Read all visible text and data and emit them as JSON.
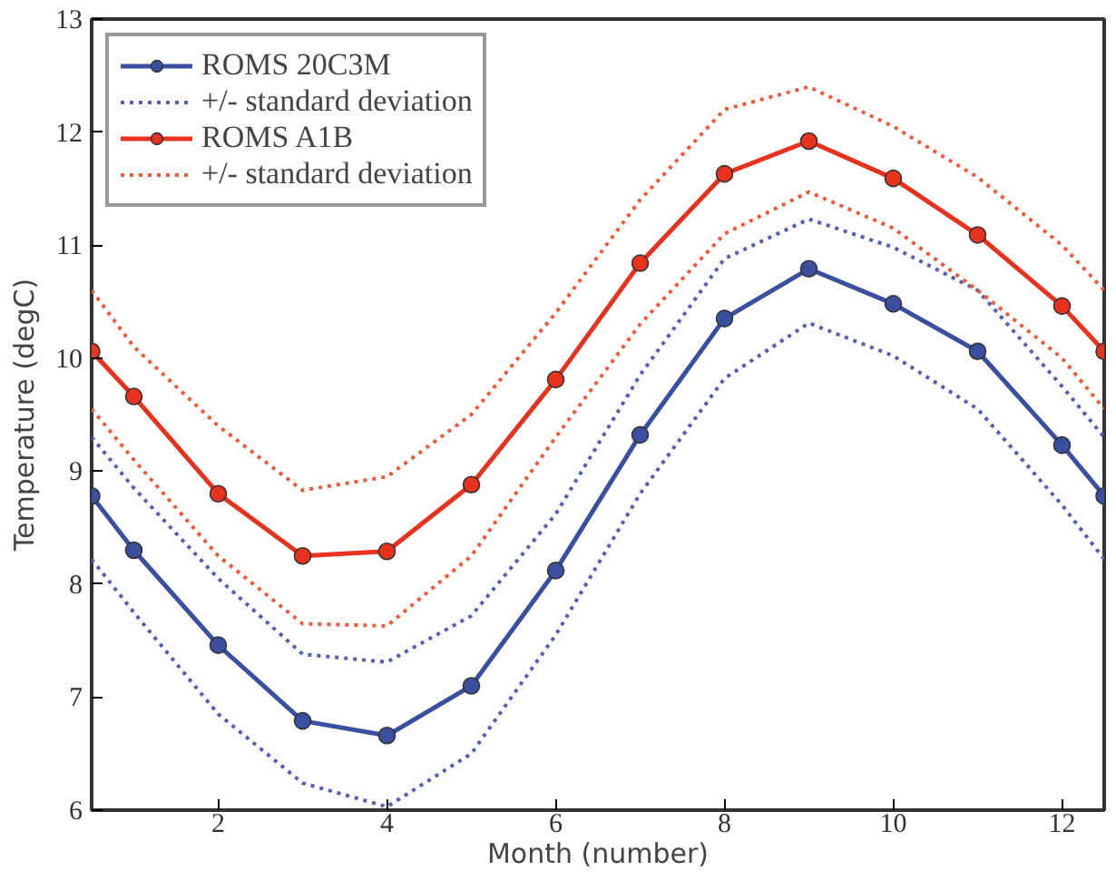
{
  "chart_data": {
    "type": "line",
    "xlabel": "Month (number)",
    "ylabel": "Temperature (degC)",
    "x": [
      0.5,
      1,
      2,
      3,
      4,
      5,
      6,
      7,
      8,
      9,
      10,
      11,
      12,
      12.5
    ],
    "xlim": [
      0.5,
      12.5
    ],
    "xticks": [
      2,
      4,
      6,
      8,
      10,
      12
    ],
    "ylim": [
      6,
      13
    ],
    "yticks": [
      6,
      7,
      8,
      9,
      10,
      11,
      12,
      13
    ],
    "grid": false,
    "legend": "top left",
    "series": [
      {
        "name": "ROMS 20C3M",
        "color": "#3a4fa0",
        "marker": "circle",
        "line_style": "solid",
        "values": [
          8.78,
          8.3,
          7.46,
          6.79,
          6.66,
          7.1,
          8.12,
          9.32,
          10.35,
          10.79,
          10.48,
          10.06,
          9.23,
          8.78
        ]
      },
      {
        "name": "+/- standard deviation",
        "color": "#5560b0",
        "marker": "none",
        "line_style": "dotted",
        "values": [
          9.3,
          8.85,
          8.05,
          7.38,
          7.31,
          7.72,
          8.62,
          9.85,
          10.88,
          11.23,
          10.98,
          10.6,
          9.75,
          9.3
        ]
      },
      {
        "color": "#5560b0",
        "marker": "none",
        "line_style": "dotted",
        "values": [
          8.22,
          7.75,
          6.85,
          6.24,
          6.03,
          6.5,
          7.55,
          8.8,
          9.82,
          10.31,
          10.02,
          9.55,
          8.7,
          8.22
        ]
      },
      {
        "name": "ROMS A1B",
        "color": "#e8321e",
        "marker": "circle",
        "line_style": "solid",
        "values": [
          10.06,
          9.66,
          8.8,
          8.25,
          8.29,
          8.88,
          9.81,
          10.84,
          11.63,
          11.92,
          11.59,
          11.09,
          10.46,
          10.06
        ]
      },
      {
        "name": "+/- standard deviation",
        "color": "#ee5a3c",
        "marker": "none",
        "line_style": "dotted",
        "values": [
          10.6,
          10.1,
          9.4,
          8.83,
          8.95,
          9.5,
          10.4,
          11.4,
          12.2,
          12.4,
          12.05,
          11.6,
          11.0,
          10.6
        ]
      },
      {
        "color": "#ee5a3c",
        "marker": "none",
        "line_style": "dotted",
        "values": [
          9.55,
          9.1,
          8.25,
          7.65,
          7.63,
          8.25,
          9.3,
          10.3,
          11.1,
          11.47,
          11.15,
          10.6,
          10.0,
          9.55
        ]
      }
    ]
  }
}
